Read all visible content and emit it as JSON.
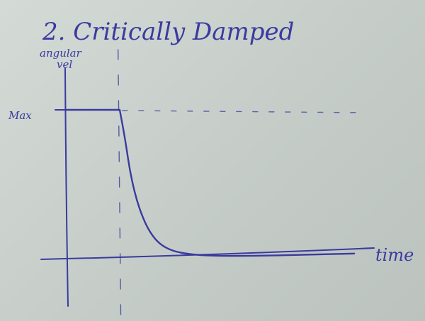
{
  "chart_data": {
    "type": "line",
    "title": "2. Critically Damped",
    "ylabel_line1": "angular",
    "ylabel_line2": "vel",
    "xlabel": "time",
    "y_tick_label": "Max",
    "ink_color": "#3b3a9e",
    "grid": false,
    "series": [
      {
        "name": "",
        "description_points": [
          {
            "x": 0.0,
            "y": 1.0
          },
          {
            "x": 1.0,
            "y": 1.0
          },
          {
            "x": 1.1,
            "y": 0.8
          },
          {
            "x": 1.2,
            "y": 0.55
          },
          {
            "x": 1.35,
            "y": 0.33
          },
          {
            "x": 1.55,
            "y": 0.16
          },
          {
            "x": 1.8,
            "y": 0.06
          },
          {
            "x": 2.2,
            "y": 0.015
          },
          {
            "x": 3.0,
            "y": 0.0
          },
          {
            "x": 5.3,
            "y": 0.02
          }
        ]
      }
    ],
    "xlim": [
      -0.4,
      5.4
    ],
    "ylim": [
      -0.1,
      1.55
    ]
  }
}
